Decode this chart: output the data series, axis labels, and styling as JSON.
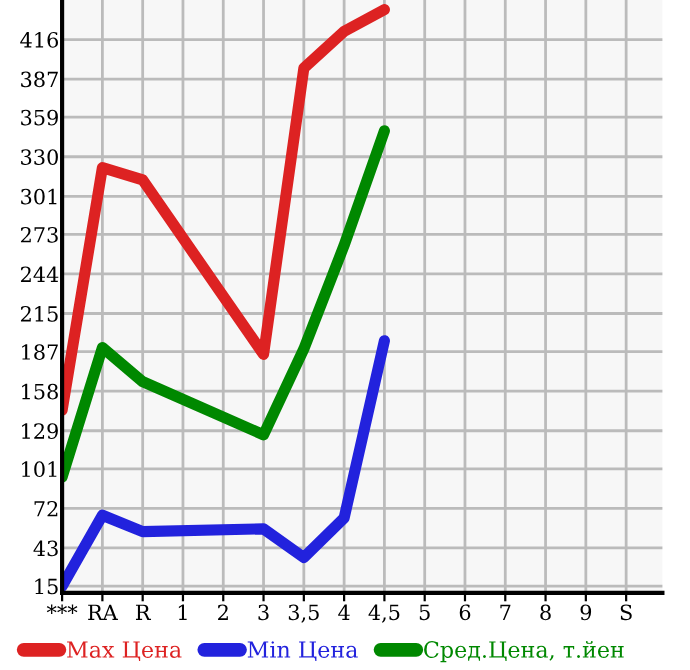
{
  "chart_data": {
    "type": "line",
    "categories": [
      "***",
      "RA",
      "R",
      "1",
      "2",
      "3",
      "3,5",
      "4",
      "4,5",
      "5",
      "6",
      "7",
      "8",
      "9",
      "S"
    ],
    "series": [
      {
        "name": "Max Цена",
        "color": "#dd2222",
        "values": [
          144,
          322,
          313,
          null,
          null,
          185,
          395,
          422,
          438,
          null,
          null,
          null,
          null,
          null,
          null
        ]
      },
      {
        "name": "Min Цена",
        "color": "#2222dd",
        "values": [
          15,
          67,
          55,
          null,
          null,
          57,
          36,
          65,
          195,
          null,
          null,
          null,
          null,
          null,
          null
        ]
      },
      {
        "name": "Сред.Цена, т.йен",
        "color": "#008800",
        "values": [
          95,
          190,
          165,
          null,
          null,
          126,
          189,
          265,
          349,
          null,
          null,
          null,
          null,
          null,
          null
        ]
      }
    ],
    "ylim": [
      10,
      445
    ],
    "yticks": [
      15,
      43,
      72,
      101,
      129,
      158,
      187,
      215,
      244,
      273,
      301,
      330,
      359,
      387,
      416
    ],
    "grid": true,
    "legend": "bottom",
    "marker": "none",
    "line_style": "solid"
  }
}
